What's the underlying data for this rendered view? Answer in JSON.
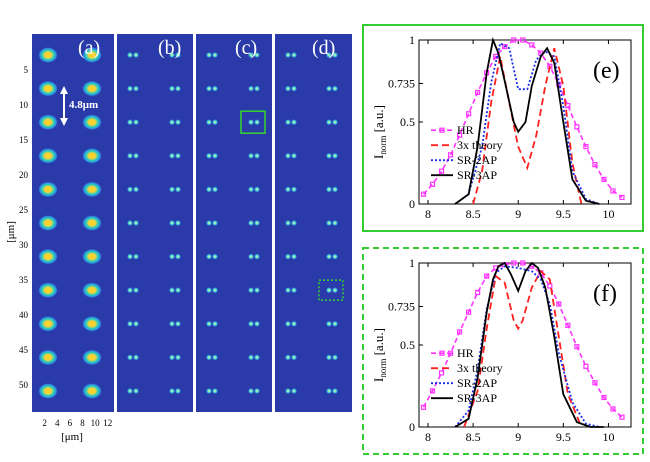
{
  "colors": {
    "panel_bg": "#2a3aa8",
    "separator": "#ffffff",
    "spot_core": "#ffd21e",
    "spot_mid": "#27d0c0",
    "green_frame": "#33cc33",
    "hr": "#ff33ff",
    "theory": "#ff2020",
    "sr2ap": "#1a2ee6",
    "sr3ap": "#000000"
  },
  "image_grid": {
    "panel_labels": [
      "(a)",
      "(b)",
      "(c)",
      "(d)"
    ],
    "spacing_label": "4.8μm",
    "y_ticks": [
      "5",
      "10",
      "15",
      "20",
      "25",
      "30",
      "35",
      "40",
      "45",
      "50"
    ],
    "y_tick_values": [
      5,
      10,
      15,
      20,
      25,
      30,
      35,
      40,
      45,
      50
    ],
    "y_label": "[μm]",
    "x_ticks": [
      "2",
      "4",
      "6",
      "8",
      "10",
      "12"
    ],
    "x_tick_values": [
      2,
      4,
      6,
      8,
      10,
      12
    ],
    "x_label": "[μm]",
    "row_centers_um": [
      3,
      7.8,
      12.6,
      17.4,
      22.2,
      27,
      31.8,
      36.6,
      41.4,
      46.2,
      51
    ],
    "solid_box": "panel (c), row at 12.6 μm, right pair",
    "dotted_box": "panel (d), row at 36.6 μm, right pair"
  },
  "chart_data": [
    {
      "type": "line",
      "panel": "(e)",
      "frame": "solid",
      "xlim": [
        7.9,
        10.25
      ],
      "ylim": [
        0,
        1
      ],
      "xticks": [
        "8",
        "8.5",
        "9",
        "9.5",
        "10"
      ],
      "xtick_values": [
        8,
        8.5,
        9,
        9.5,
        10
      ],
      "yticks": [
        "0",
        "0.5",
        "0.735",
        "1"
      ],
      "ytick_values": [
        0,
        0.5,
        0.735,
        1
      ],
      "ylabel": "I",
      "ylabel_sub": "norm",
      "ylabel_unit": "[a.u.]",
      "legend": [
        "HR",
        "3x theory",
        "SR-2AP",
        "SR-3AP"
      ],
      "series": [
        {
          "name": "HR",
          "x": [
            7.95,
            8.05,
            8.15,
            8.25,
            8.35,
            8.45,
            8.55,
            8.65,
            8.75,
            8.85,
            8.95,
            9.05,
            9.15,
            9.25,
            9.35,
            9.45,
            9.55,
            9.65,
            9.75,
            9.85,
            9.95,
            10.05,
            10.15
          ],
          "y": [
            0.06,
            0.12,
            0.2,
            0.3,
            0.42,
            0.55,
            0.68,
            0.8,
            0.9,
            0.96,
            1.0,
            1.0,
            0.97,
            0.92,
            0.84,
            0.73,
            0.6,
            0.47,
            0.35,
            0.24,
            0.15,
            0.08,
            0.04
          ]
        },
        {
          "name": "3x theory",
          "x": [
            8.5,
            8.6,
            8.7,
            8.8,
            8.9,
            9.0,
            9.1,
            9.2,
            9.3,
            9.4,
            9.5,
            9.6,
            9.7
          ],
          "y": [
            0.0,
            0.2,
            0.62,
            0.9,
            0.62,
            0.35,
            0.22,
            0.42,
            0.72,
            0.95,
            0.72,
            0.25,
            0.0
          ]
        },
        {
          "name": "SR-2AP",
          "x": [
            8.3,
            8.45,
            8.6,
            8.7,
            8.8,
            8.9,
            9.0,
            9.1,
            9.2,
            9.3,
            9.4,
            9.5,
            9.6,
            9.75,
            9.9
          ],
          "y": [
            0.0,
            0.06,
            0.35,
            0.74,
            0.98,
            0.95,
            0.7,
            0.7,
            0.88,
            0.93,
            0.9,
            0.6,
            0.2,
            0.03,
            0.0
          ]
        },
        {
          "name": "SR-3AP",
          "x": [
            8.3,
            8.45,
            8.55,
            8.65,
            8.72,
            8.78,
            8.85,
            8.95,
            9.0,
            9.08,
            9.15,
            9.25,
            9.32,
            9.4,
            9.5,
            9.6,
            9.75,
            9.9
          ],
          "y": [
            0.0,
            0.06,
            0.35,
            0.8,
            1.0,
            0.92,
            0.75,
            0.5,
            0.44,
            0.5,
            0.72,
            0.9,
            0.95,
            0.86,
            0.5,
            0.15,
            0.02,
            0.0
          ]
        }
      ]
    },
    {
      "type": "line",
      "panel": "(f)",
      "frame": "dashed",
      "xlim": [
        7.9,
        10.25
      ],
      "ylim": [
        0,
        1
      ],
      "xticks": [
        "8",
        "8.5",
        "9",
        "9.5",
        "10"
      ],
      "xtick_values": [
        8,
        8.5,
        9,
        9.5,
        10
      ],
      "yticks": [
        "0",
        "0.5",
        "0.735",
        "1"
      ],
      "ytick_values": [
        0,
        0.5,
        0.735,
        1
      ],
      "ylabel": "I",
      "ylabel_sub": "norm",
      "ylabel_unit": "[a.u.]",
      "legend": [
        "HR",
        "3x theory",
        "SR-2AP",
        "SR-3AP"
      ],
      "series": [
        {
          "name": "HR",
          "x": [
            7.95,
            8.05,
            8.15,
            8.25,
            8.35,
            8.45,
            8.55,
            8.65,
            8.75,
            8.85,
            8.95,
            9.05,
            9.15,
            9.25,
            9.35,
            9.45,
            9.55,
            9.65,
            9.75,
            9.85,
            9.95,
            10.05,
            10.15
          ],
          "y": [
            0.12,
            0.22,
            0.33,
            0.45,
            0.58,
            0.7,
            0.82,
            0.92,
            0.97,
            0.99,
            1.0,
            1.0,
            0.98,
            0.94,
            0.86,
            0.75,
            0.62,
            0.49,
            0.37,
            0.27,
            0.18,
            0.11,
            0.06
          ]
        },
        {
          "name": "3x theory",
          "x": [
            8.4,
            8.55,
            8.65,
            8.75,
            8.85,
            8.95,
            9.0,
            9.05,
            9.15,
            9.25,
            9.35,
            9.45,
            9.55,
            9.7
          ],
          "y": [
            0.0,
            0.22,
            0.6,
            0.92,
            0.88,
            0.65,
            0.6,
            0.65,
            0.85,
            0.95,
            0.9,
            0.55,
            0.2,
            0.0
          ]
        },
        {
          "name": "SR-2AP",
          "x": [
            8.3,
            8.45,
            8.55,
            8.65,
            8.75,
            8.85,
            9.0,
            9.15,
            9.25,
            9.35,
            9.45,
            9.6,
            9.75,
            9.9
          ],
          "y": [
            0.0,
            0.1,
            0.35,
            0.72,
            0.94,
            0.98,
            0.97,
            0.95,
            0.9,
            0.75,
            0.45,
            0.15,
            0.02,
            0.0
          ]
        },
        {
          "name": "SR-3AP",
          "x": [
            8.3,
            8.45,
            8.55,
            8.65,
            8.72,
            8.78,
            8.85,
            8.92,
            9.0,
            9.08,
            9.15,
            9.22,
            9.3,
            9.4,
            9.5,
            9.65,
            9.8,
            9.95
          ],
          "y": [
            0.0,
            0.05,
            0.3,
            0.7,
            0.9,
            0.98,
            1.0,
            0.93,
            0.83,
            0.95,
            1.0,
            0.97,
            0.85,
            0.55,
            0.2,
            0.03,
            0.0,
            0.0
          ]
        }
      ]
    }
  ]
}
